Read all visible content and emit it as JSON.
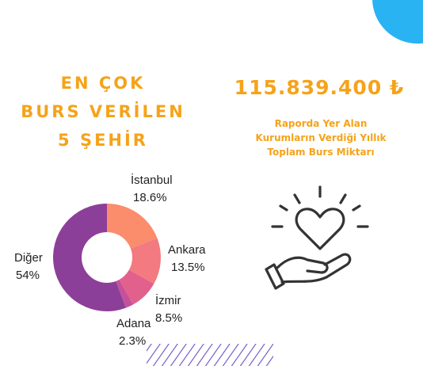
{
  "header": {
    "title_lines": [
      "EN ÇOK",
      "BURS VERİLEN",
      "5 ŞEHİR"
    ]
  },
  "stat": {
    "amount": "115.839.400 ₺",
    "caption_lines": [
      "Raporda Yer Alan",
      "Kurumların Verdiği Yıllık",
      "Toplam Burs Miktarı"
    ]
  },
  "chart_data": {
    "type": "donut",
    "categories": [
      "İstanbul",
      "Ankara",
      "İzmir",
      "Adana",
      "Diğer"
    ],
    "values": [
      18.6,
      13.5,
      8.5,
      2.3,
      54
    ],
    "value_labels": [
      "18.6%",
      "13.5%",
      "8.5%",
      "2.3%",
      "54%"
    ],
    "colors": [
      "#fb8c6c",
      "#f27a80",
      "#e2608c",
      "#c6519a",
      "#8c3f98"
    ]
  }
}
